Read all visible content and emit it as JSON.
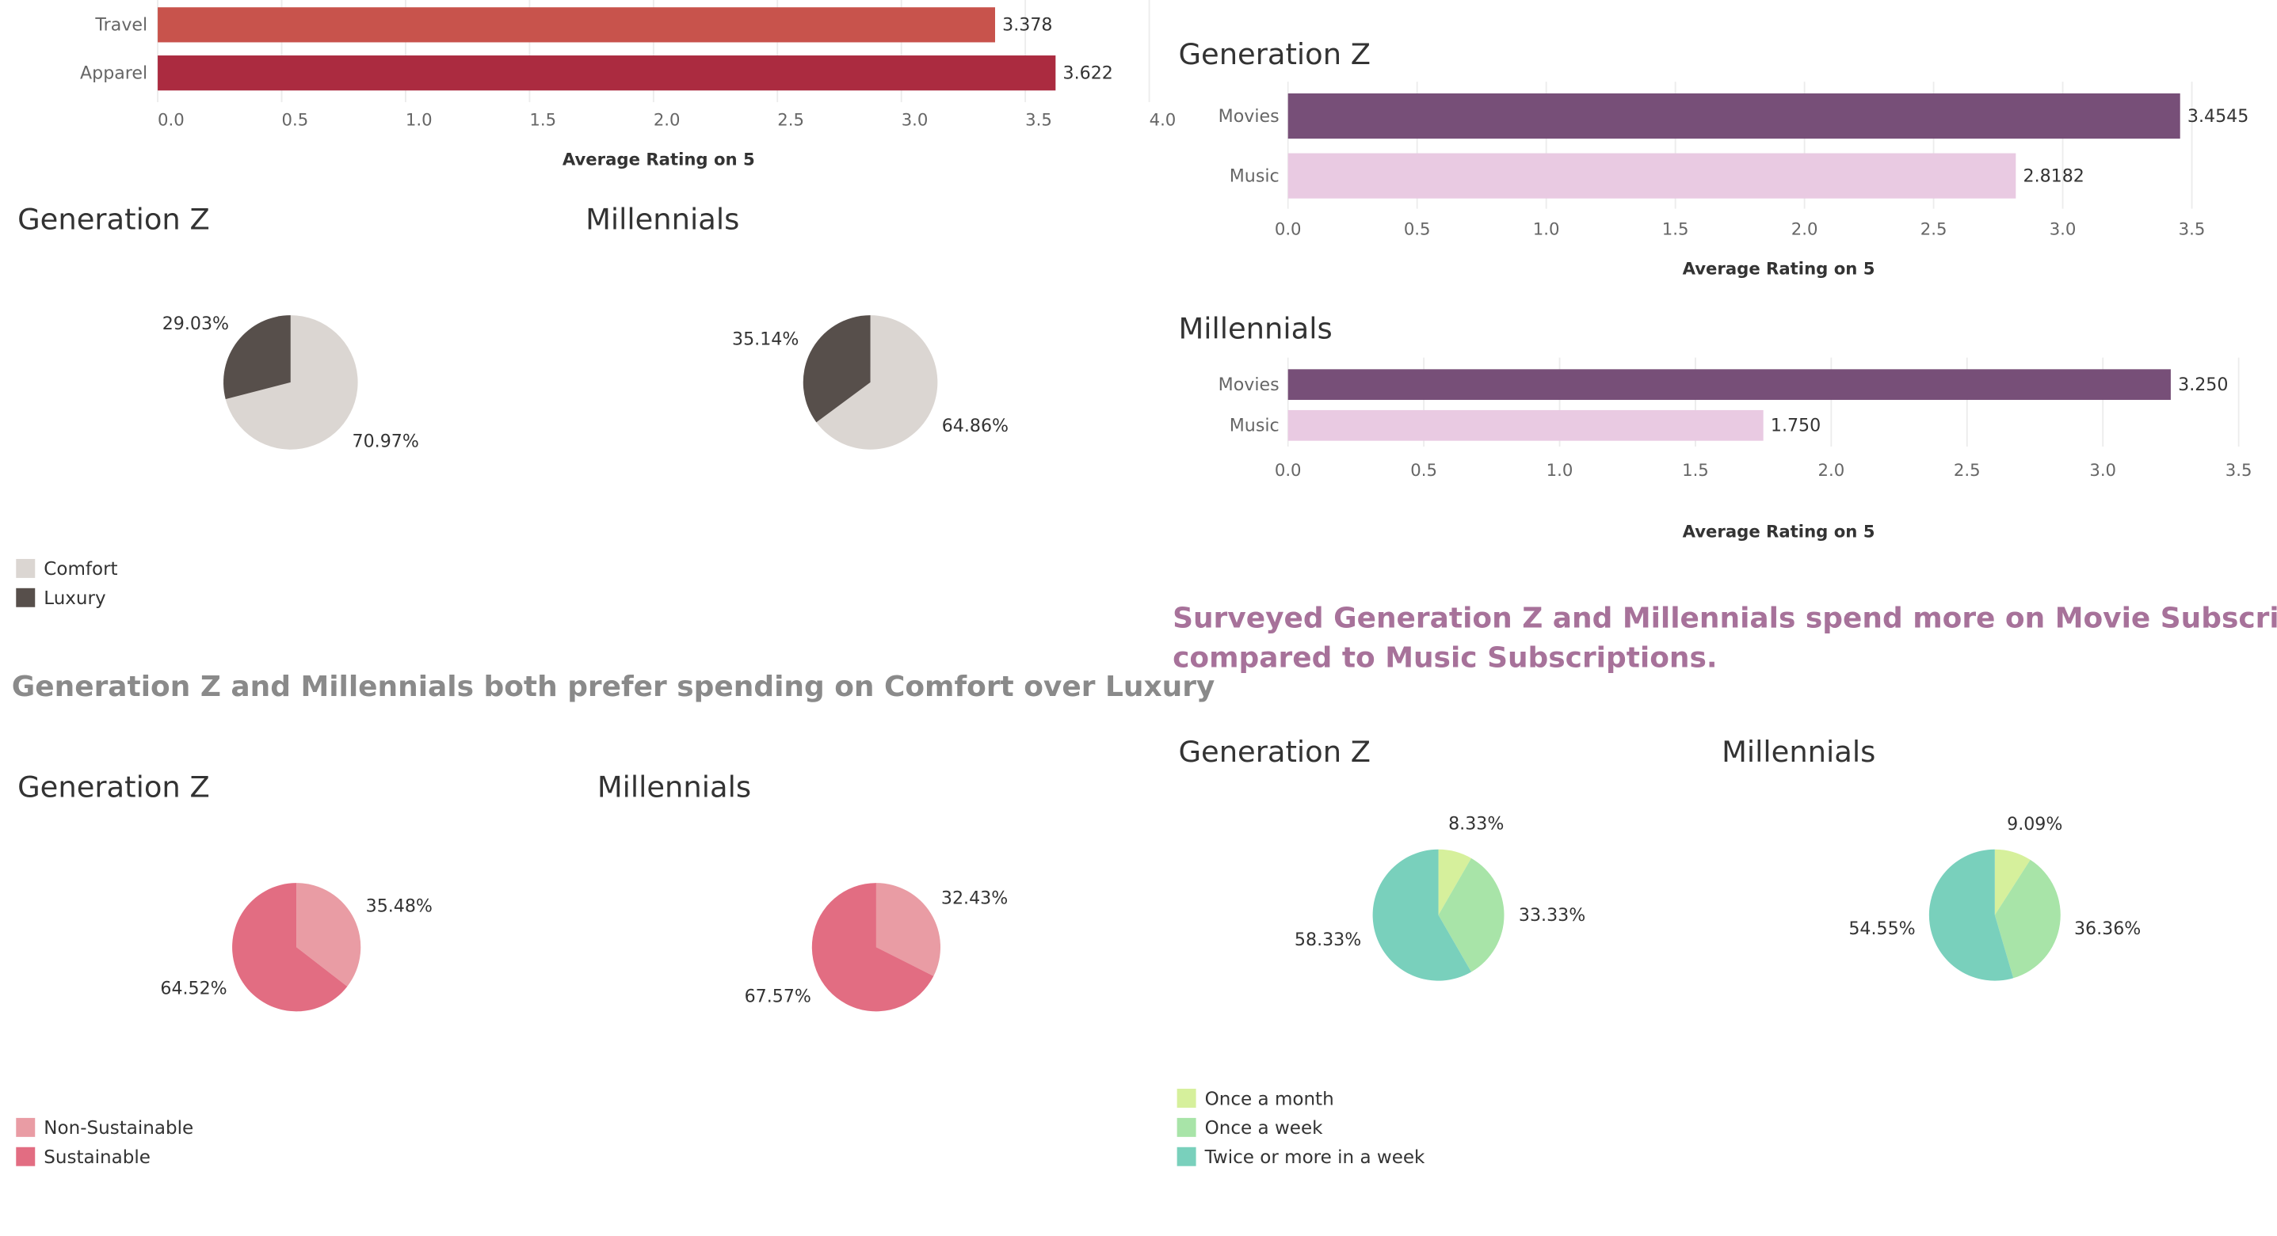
{
  "colors": {
    "travel": "#c8534c",
    "apparel": "#ab2b40",
    "comfort": "#dbd6d2",
    "luxury": "#574f4b",
    "non_sustainable": "#e99ca4",
    "sustainable": "#e26d82",
    "movies": "#774f78",
    "music": "#e9cae2",
    "once_month": "#d6f09c",
    "once_week": "#a8e4a8",
    "twice_more": "#79d0bc"
  },
  "captions": {
    "comfort": "Generation Z and Millennials both prefer spending on Comfort over Luxury",
    "subs_line1": "Surveyed Generation Z and Millennials spend more on Movie Subscriptions as",
    "subs_line2": "compared to Music Subscriptions."
  },
  "legends": {
    "comfort": [
      "Comfort",
      "Luxury"
    ],
    "sustain": [
      "Non-Sustainable",
      "Sustainable"
    ],
    "freq": [
      "Once a month",
      "Once a week",
      "Twice or more in a week"
    ]
  },
  "chart_data": [
    {
      "id": "shopping",
      "type": "bar",
      "orientation": "horizontal",
      "title": "",
      "categories": [
        "Travel",
        "Apparel"
      ],
      "values": [
        3.378,
        3.622
      ],
      "data_labels": [
        "3.378",
        "3.622"
      ],
      "xlim": [
        0,
        4.0
      ],
      "ticks": [
        "0.0",
        "0.5",
        "1.0",
        "1.5",
        "2.0",
        "2.5",
        "3.0",
        "3.5",
        "4.0"
      ],
      "xlabel": "Average Rating on 5"
    },
    {
      "id": "comfort-genz",
      "type": "pie",
      "title": "Generation Z",
      "labels": [
        "Comfort",
        "Luxury"
      ],
      "values": [
        70.97,
        29.03
      ],
      "data_labels": [
        "70.97%",
        "29.03%"
      ]
    },
    {
      "id": "comfort-mill",
      "type": "pie",
      "title": "Millennials",
      "labels": [
        "Comfort",
        "Luxury"
      ],
      "values": [
        64.86,
        35.14
      ],
      "data_labels": [
        "64.86%",
        "35.14%"
      ]
    },
    {
      "id": "sustain-genz",
      "type": "pie",
      "title": "Generation Z",
      "labels": [
        "Non-Sustainable",
        "Sustainable"
      ],
      "values": [
        35.48,
        64.52
      ],
      "data_labels": [
        "35.48%",
        "64.52%"
      ]
    },
    {
      "id": "sustain-mill",
      "type": "pie",
      "title": "Millennials",
      "labels": [
        "Non-Sustainable",
        "Sustainable"
      ],
      "values": [
        32.43,
        67.57
      ],
      "data_labels": [
        "32.43%",
        "67.57%"
      ]
    },
    {
      "id": "subs-genz",
      "type": "bar",
      "orientation": "horizontal",
      "title": "Generation Z",
      "categories": [
        "Movies",
        "Music"
      ],
      "values": [
        3.4545,
        2.8182
      ],
      "data_labels": [
        "3.4545",
        "2.8182"
      ],
      "xlim": [
        0,
        3.8
      ],
      "ticks": [
        "0.0",
        "0.5",
        "1.0",
        "1.5",
        "2.0",
        "2.5",
        "3.0",
        "3.5"
      ],
      "xlabel": "Average Rating on 5"
    },
    {
      "id": "subs-mill",
      "type": "bar",
      "orientation": "horizontal",
      "title": "Millennials",
      "categories": [
        "Movies",
        "Music"
      ],
      "values": [
        3.25,
        1.75
      ],
      "data_labels": [
        "3.250",
        "1.750"
      ],
      "xlim": [
        0,
        3.5
      ],
      "ticks": [
        "0.0",
        "0.5",
        "1.0",
        "1.5",
        "2.0",
        "2.5",
        "3.0",
        "3.5"
      ],
      "xlabel": "Average Rating on 5"
    },
    {
      "id": "freq-genz",
      "type": "pie",
      "title": "Generation Z",
      "labels": [
        "Once a month",
        "Once a week",
        "Twice or more in a week"
      ],
      "values": [
        8.33,
        33.33,
        58.33
      ],
      "data_labels": [
        "8.33%",
        "33.33%",
        "58.33%"
      ]
    },
    {
      "id": "freq-mill",
      "type": "pie",
      "title": "Millennials",
      "labels": [
        "Once a month",
        "Once a week",
        "Twice or more in a week"
      ],
      "values": [
        9.09,
        36.36,
        54.55
      ],
      "data_labels": [
        "9.09%",
        "36.36%",
        "54.55%"
      ]
    }
  ]
}
